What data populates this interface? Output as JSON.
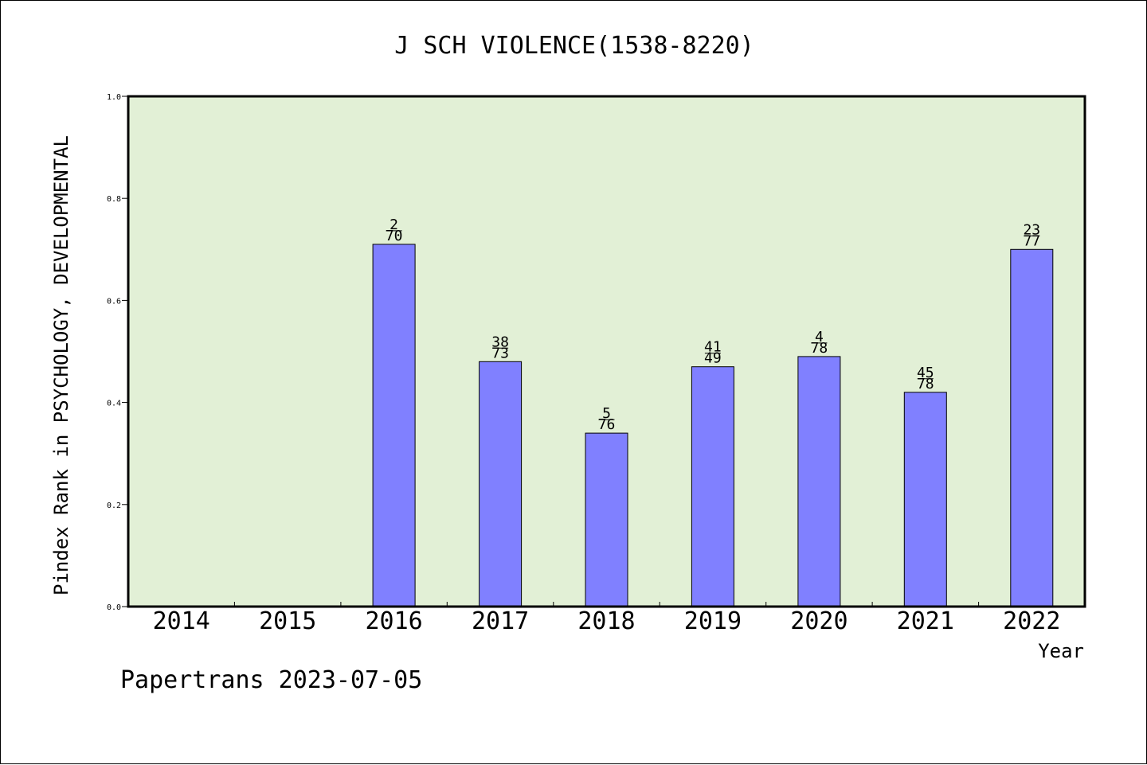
{
  "chart_data": {
    "type": "bar",
    "title": "J SCH VIOLENCE(1538-8220)",
    "xlabel": "Year",
    "ylabel": "Pindex Rank in PSYCHOLOGY, DEVELOPMENTAL",
    "categories": [
      "2014",
      "2015",
      "2016",
      "2017",
      "2018",
      "2019",
      "2020",
      "2021",
      "2022"
    ],
    "values": [
      null,
      null,
      0.71,
      0.48,
      0.34,
      0.47,
      0.49,
      0.42,
      0.7
    ],
    "annotations": [
      null,
      null,
      {
        "numerator": "2",
        "denominator": "70"
      },
      {
        "numerator": "38",
        "denominator": "73"
      },
      {
        "numerator": "5",
        "denominator": "76"
      },
      {
        "numerator": "41",
        "denominator": "49"
      },
      {
        "numerator": "4",
        "denominator": "78"
      },
      {
        "numerator": "45",
        "denominator": "78"
      },
      {
        "numerator": "23",
        "denominator": "77"
      }
    ],
    "ylim": [
      0,
      1.0
    ],
    "yticks": [
      "0.0",
      "0.2",
      "0.4",
      "0.6",
      "0.8",
      "1.0"
    ],
    "grid": false,
    "colors": {
      "plot_background": "#e2f0d6",
      "bar_fill": "#8080ff",
      "bar_stroke": "#000000"
    }
  },
  "footer": {
    "credit": "Papertrans 2023-07-05"
  }
}
